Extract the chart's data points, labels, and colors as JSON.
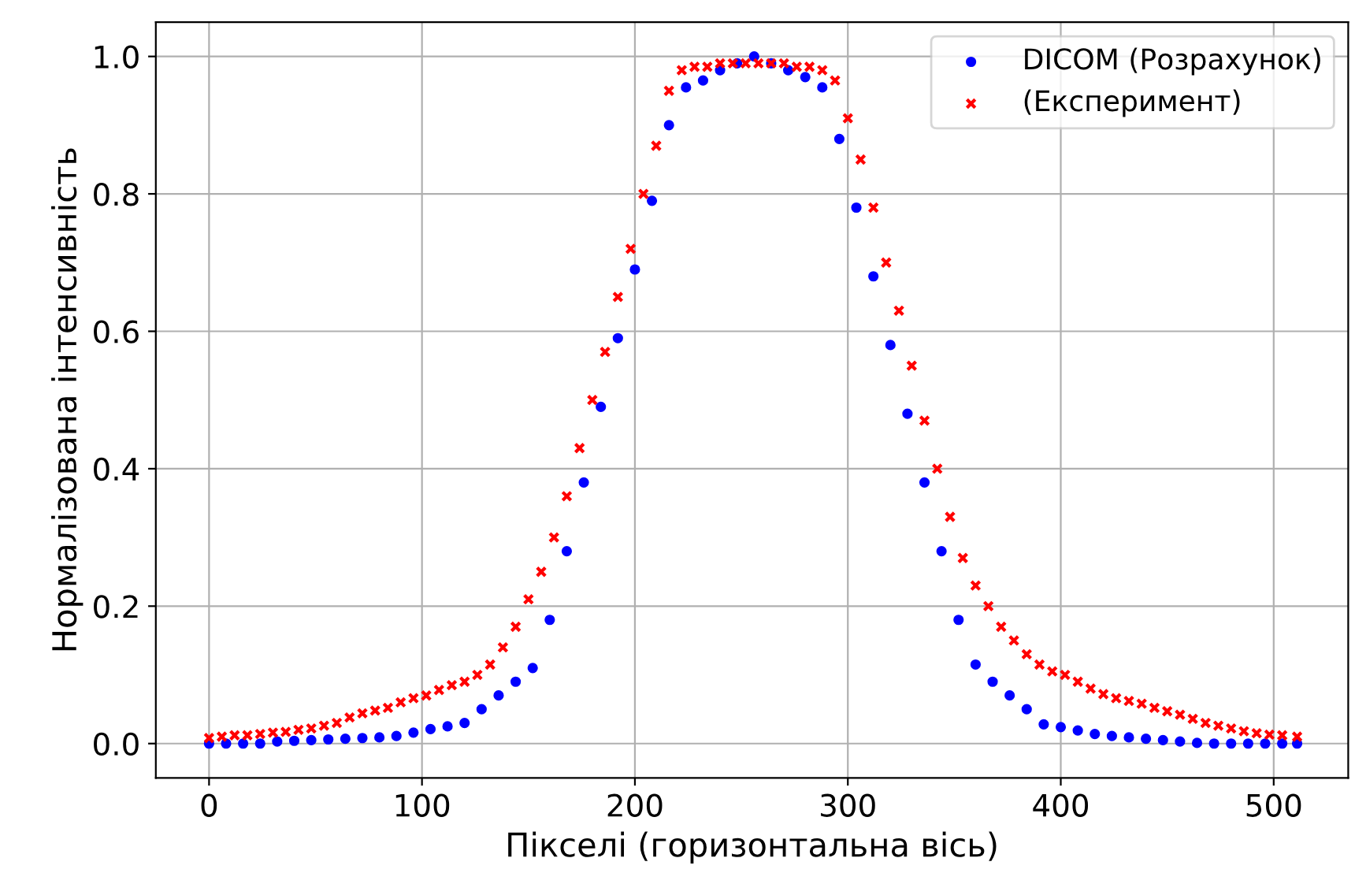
{
  "chart_data": {
    "type": "scatter",
    "xlabel": "Пікселі (горизонтальна вісь)",
    "ylabel": "Нормалізована інтенсивність",
    "xlim": [
      -25,
      535
    ],
    "xticks": [
      0,
      100,
      200,
      300,
      400,
      500
    ],
    "ylim": [
      -0.05,
      1.05
    ],
    "yticks": [
      {
        "value": 0,
        "label": "0.0"
      },
      {
        "value": 0.2,
        "label": "0.2"
      },
      {
        "value": 0.4,
        "label": "0.4"
      },
      {
        "value": 0.6,
        "label": "0.6"
      },
      {
        "value": 0.8,
        "label": "0.8"
      },
      {
        "value": 1,
        "label": "1.0"
      }
    ],
    "grid": true,
    "legend": "top right",
    "series": [
      {
        "name": "DICOM (Розрахунок)",
        "color": "#0000ff",
        "marker": "circle",
        "x": [
          0,
          8,
          16,
          24,
          32,
          40,
          48,
          56,
          64,
          72,
          80,
          88,
          96,
          104,
          112,
          120,
          128,
          136,
          144,
          152,
          160,
          168,
          176,
          184,
          192,
          200,
          208,
          216,
          224,
          232,
          240,
          248,
          256,
          264,
          272,
          280,
          288,
          296,
          304,
          312,
          320,
          328,
          336,
          344,
          352,
          360,
          368,
          376,
          384,
          392,
          400,
          408,
          416,
          424,
          432,
          440,
          448,
          456,
          464,
          472,
          480,
          488,
          496,
          504,
          511
        ],
        "values": [
          0.0,
          0.0,
          0.0,
          0.0,
          0.003,
          0.004,
          0.005,
          0.006,
          0.007,
          0.008,
          0.009,
          0.011,
          0.016,
          0.021,
          0.025,
          0.03,
          0.05,
          0.07,
          0.09,
          0.11,
          0.18,
          0.28,
          0.38,
          0.49,
          0.59,
          0.69,
          0.79,
          0.9,
          0.955,
          0.965,
          0.98,
          0.99,
          1.0,
          0.99,
          0.98,
          0.97,
          0.955,
          0.88,
          0.78,
          0.68,
          0.58,
          0.48,
          0.38,
          0.28,
          0.18,
          0.115,
          0.09,
          0.07,
          0.05,
          0.028,
          0.024,
          0.019,
          0.014,
          0.011,
          0.009,
          0.007,
          0.005,
          0.003,
          0.001,
          0.0,
          0.0,
          0.0,
          0.0,
          0.0,
          0.0
        ]
      },
      {
        "name": "(Експеримент)",
        "color": "#ff0000",
        "marker": "cross",
        "x": [
          0,
          6,
          12,
          18,
          24,
          30,
          36,
          42,
          48,
          54,
          60,
          66,
          72,
          78,
          84,
          90,
          96,
          102,
          108,
          114,
          120,
          126,
          132,
          138,
          144,
          150,
          156,
          162,
          168,
          174,
          180,
          186,
          192,
          198,
          204,
          210,
          216,
          222,
          228,
          234,
          240,
          246,
          252,
          258,
          264,
          270,
          276,
          282,
          288,
          294,
          300,
          306,
          312,
          318,
          324,
          330,
          336,
          342,
          348,
          354,
          360,
          366,
          372,
          378,
          384,
          390,
          396,
          402,
          408,
          414,
          420,
          426,
          432,
          438,
          444,
          450,
          456,
          462,
          468,
          474,
          480,
          486,
          492,
          498,
          504,
          511
        ],
        "values": [
          0.008,
          0.01,
          0.012,
          0.012,
          0.014,
          0.016,
          0.017,
          0.02,
          0.022,
          0.026,
          0.03,
          0.038,
          0.044,
          0.048,
          0.052,
          0.06,
          0.066,
          0.07,
          0.078,
          0.085,
          0.09,
          0.1,
          0.115,
          0.14,
          0.17,
          0.21,
          0.25,
          0.3,
          0.36,
          0.43,
          0.5,
          0.57,
          0.65,
          0.72,
          0.8,
          0.87,
          0.95,
          0.98,
          0.985,
          0.985,
          0.99,
          0.99,
          0.99,
          0.99,
          0.99,
          0.99,
          0.985,
          0.985,
          0.98,
          0.965,
          0.91,
          0.85,
          0.78,
          0.7,
          0.63,
          0.55,
          0.47,
          0.4,
          0.33,
          0.27,
          0.23,
          0.2,
          0.17,
          0.15,
          0.13,
          0.115,
          0.105,
          0.1,
          0.09,
          0.08,
          0.072,
          0.066,
          0.062,
          0.058,
          0.052,
          0.047,
          0.042,
          0.036,
          0.03,
          0.026,
          0.022,
          0.018,
          0.015,
          0.013,
          0.012,
          0.01
        ]
      }
    ]
  }
}
